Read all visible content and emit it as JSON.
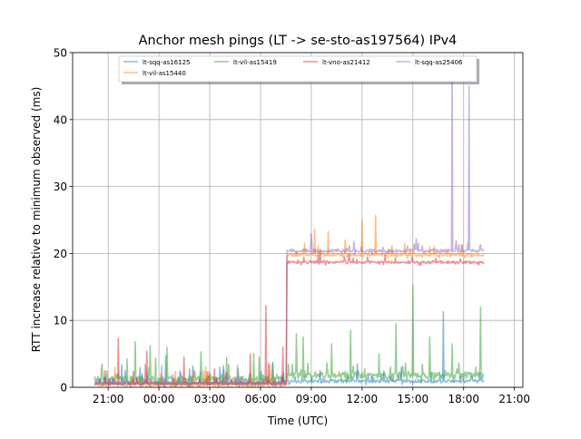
{
  "chart_data": {
    "type": "line",
    "title": "Anchor mesh pings (LT -> se-sto-as197564) IPv4",
    "xlabel": "Time (UTC)",
    "ylabel": "RTT increase relative to minimum observed (ms)",
    "x_units": "hours since first 21:00",
    "xlim": [
      -2.1,
      24.5
    ],
    "ylim": [
      0,
      50
    ],
    "grid": true,
    "legend_placement": "top-center",
    "x_ticks": [
      {
        "v": 0,
        "label": "21:00"
      },
      {
        "v": 3,
        "label": "00:00"
      },
      {
        "v": 6,
        "label": "03:00"
      },
      {
        "v": 9,
        "label": "06:00"
      },
      {
        "v": 12,
        "label": "09:00"
      },
      {
        "v": 15,
        "label": "12:00"
      },
      {
        "v": 18,
        "label": "15:00"
      },
      {
        "v": 21,
        "label": "18:00"
      },
      {
        "v": 24,
        "label": "21:00"
      }
    ],
    "y_ticks": [
      0,
      10,
      20,
      30,
      40,
      50
    ],
    "start": -0.8,
    "step_time": 10.55,
    "end": 22.2,
    "series": [
      {
        "name": "lt-sqq-as16125",
        "color": "#1f77b4",
        "base_before": 0.5,
        "base_after": 0.8,
        "noise": 0.6,
        "spikes": [
          [
            3.4,
            4.7
          ],
          [
            1.0,
            2.5
          ],
          [
            5.0,
            3.2
          ],
          [
            14.7,
            3.5
          ],
          [
            19.8,
            11.3
          ],
          [
            12.5,
            2.5
          ],
          [
            17.3,
            3.0
          ]
        ]
      },
      {
        "name": "lt-vil-as15419",
        "color": "#2ca02c",
        "base_before": 1.0,
        "base_after": 1.6,
        "noise": 1.2,
        "spikes": [
          [
            1.6,
            6.8
          ],
          [
            2.5,
            6.2
          ],
          [
            3.5,
            6.0
          ],
          [
            5.5,
            5.3
          ],
          [
            7.0,
            4.5
          ],
          [
            8.9,
            4.5
          ],
          [
            11.1,
            8.0
          ],
          [
            11.5,
            7.5
          ],
          [
            13.2,
            6.5
          ],
          [
            14.3,
            8.5
          ],
          [
            16.0,
            5.0
          ],
          [
            17.0,
            9.5
          ],
          [
            18.0,
            15.3
          ],
          [
            19.0,
            7.5
          ],
          [
            20.3,
            6.5
          ],
          [
            22.0,
            12.0
          ]
        ]
      },
      {
        "name": "lt-vno-as21412",
        "color": "#d62728",
        "base_before": 0.5,
        "base_after": 18.6,
        "noise": 0.5,
        "spikes": [
          [
            0.6,
            7.3
          ],
          [
            2.3,
            5.4
          ],
          [
            4.5,
            4.5
          ],
          [
            8.4,
            5.0
          ],
          [
            9.3,
            12.2
          ],
          [
            10.3,
            6.0
          ],
          [
            -0.2,
            2.5
          ]
        ]
      },
      {
        "name": "lt-vil-as15440",
        "color": "#ff7f0e",
        "base_before": 0.3,
        "base_after": 19.7,
        "noise": 0.6,
        "spikes": [
          [
            12.2,
            23.6
          ],
          [
            13.0,
            23.3
          ],
          [
            14.0,
            22.0
          ],
          [
            15.0,
            25.0
          ],
          [
            15.8,
            25.7
          ],
          [
            17.5,
            21.5
          ],
          [
            19.0,
            21.0
          ],
          [
            0.4,
            3.0
          ]
        ]
      },
      {
        "name": "lt-sqq-as25406",
        "color": "#9467bd",
        "base_before": 0.5,
        "base_after": 20.3,
        "noise": 0.6,
        "spikes": [
          [
            12.0,
            23.0
          ],
          [
            14.5,
            21.8
          ],
          [
            18.3,
            21.5
          ],
          [
            20.3,
            49.0
          ],
          [
            21.3,
            45.0
          ],
          [
            22.0,
            21.3
          ]
        ]
      }
    ]
  }
}
